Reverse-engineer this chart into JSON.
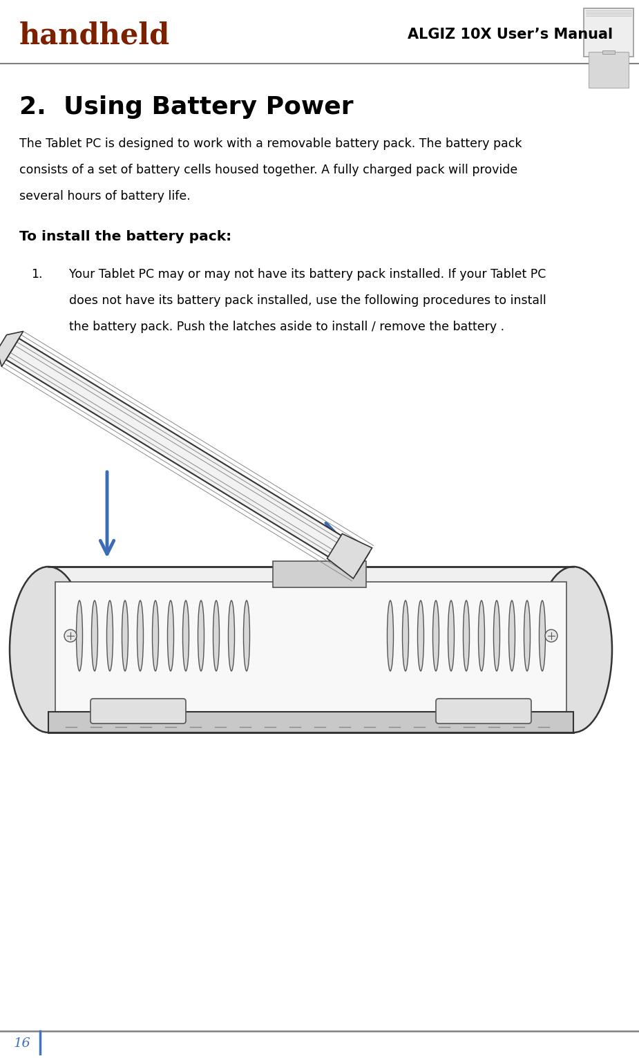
{
  "bg_color": "#ffffff",
  "header_logo_text": "handheld",
  "header_logo_color": "#7B2000",
  "header_title": "ALGIZ 10X User’s Manual",
  "header_title_color": "#000000",
  "header_line_color": "#808080",
  "section_number": "2.",
  "section_title": "  Using Battery Power",
  "section_title_color": "#000000",
  "body_lines": [
    "The Tablet PC is designed to work with a removable battery pack. The battery pack",
    "consists of a set of battery cells housed together. A fully charged pack will provide",
    "several hours of battery life."
  ],
  "body_text_color": "#000000",
  "subheading": "To install the battery pack:",
  "subheading_color": "#000000",
  "list_num": "1.",
  "list_lines": [
    "Your Tablet PC may or may not have its battery pack installed. If your Tablet PC",
    "does not have its battery pack installed, use the following procedures to install",
    "the battery pack. Push the latches aside to install / remove the battery ."
  ],
  "list_item_color": "#000000",
  "footer_line_color": "#808080",
  "footer_number": "16",
  "footer_number_color": "#4472C4",
  "footer_vline_color": "#4472C4",
  "arrow_color": "#3B6CB5",
  "drawing_line_color": "#333333",
  "drawing_face_color": "#f5f5f5",
  "drawing_dark_color": "#555555"
}
